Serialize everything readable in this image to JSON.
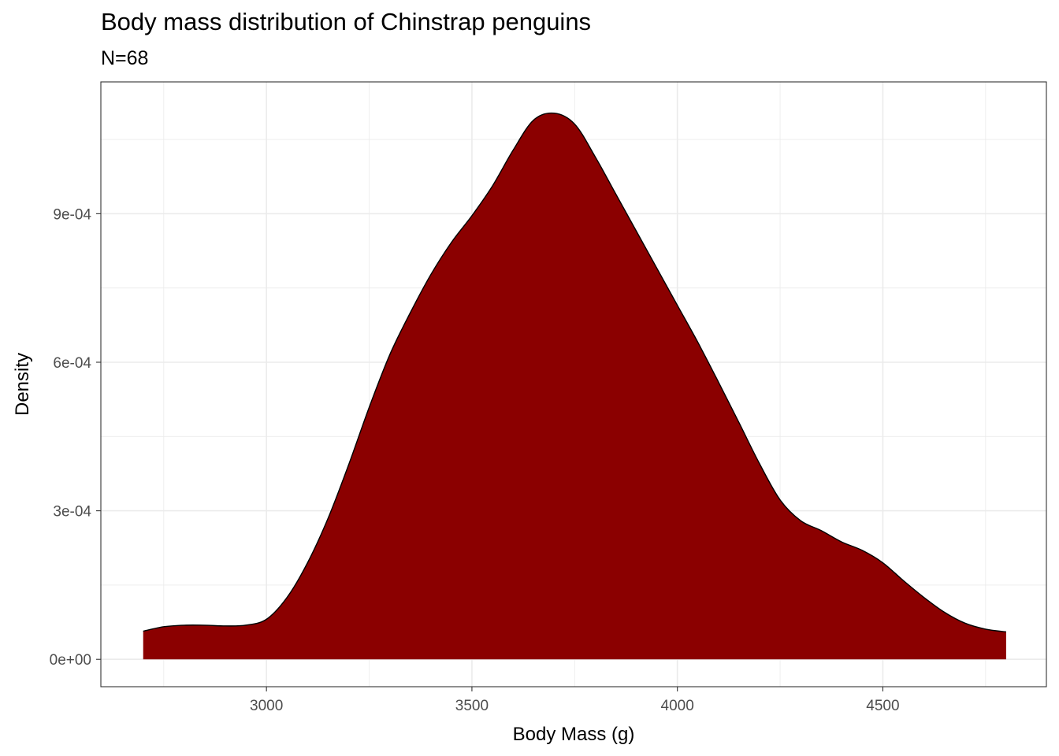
{
  "chart_data": {
    "type": "area",
    "title": "Body mass distribution of Chinstrap penguins",
    "subtitle": "N=68",
    "xlabel": "Body Mass (g)",
    "ylabel": "Density",
    "xlim": [
      2597,
      4898
    ],
    "ylim": [
      -5.53e-05,
      0.0011662
    ],
    "x_ticks": [
      3000,
      3500,
      4000,
      4500
    ],
    "x_tick_labels": [
      "3000",
      "3500",
      "4000",
      "4500"
    ],
    "x_minor_ticks": [
      2750,
      3250,
      3750,
      4250,
      4750
    ],
    "y_ticks": [
      0,
      0.0003,
      0.0006,
      0.0009
    ],
    "y_tick_labels": [
      "0e+00",
      "3e-04",
      "6e-04",
      "9e-04"
    ],
    "y_minor_ticks": [
      0.00015,
      0.00045,
      0.00075,
      0.00105
    ],
    "grid": true,
    "fill_color": "#8b0000",
    "line_color": "#000000",
    "series": [
      {
        "x": [
          2700,
          2750,
          2800,
          2850,
          2900,
          2950,
          3000,
          3050,
          3100,
          3150,
          3200,
          3250,
          3300,
          3350,
          3400,
          3450,
          3500,
          3550,
          3600,
          3650,
          3700,
          3750,
          3800,
          3850,
          3900,
          3950,
          4000,
          4050,
          4100,
          4150,
          4200,
          4250,
          4300,
          4350,
          4400,
          4450,
          4500,
          4550,
          4600,
          4650,
          4700,
          4750,
          4800
        ],
        "y": [
          5.68e-05,
          6.58e-05,
          6.89e-05,
          6.89e-05,
          6.74e-05,
          6.9e-05,
          8.09e-05,
          0.000125,
          0.000195,
          0.000285,
          0.000393,
          0.000509,
          0.000615,
          0.0007,
          0.000777,
          0.000842,
          0.000896,
          0.000956,
          0.001028,
          0.001089,
          0.001103,
          0.001081,
          0.001015,
          0.00094,
          0.000865,
          0.00079,
          0.000715,
          0.00064,
          0.00056,
          0.000478,
          0.000395,
          0.000322,
          0.00028,
          0.00026,
          0.000237,
          0.00022,
          0.000195,
          0.000159,
          0.000125,
          9.5e-05,
          7.3e-05,
          6.1e-05,
          5.55e-05
        ]
      }
    ]
  }
}
